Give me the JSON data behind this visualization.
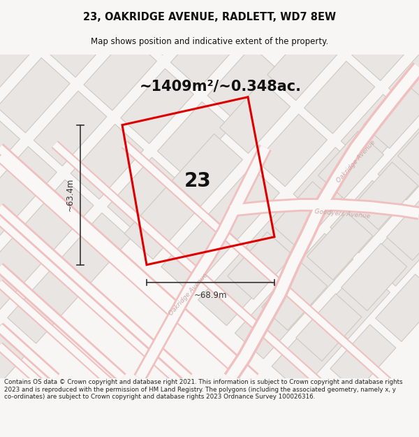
{
  "title_line1": "23, OAKRIDGE AVENUE, RADLETT, WD7 8EW",
  "title_line2": "Map shows position and indicative extent of the property.",
  "area_text": "~1409m²/~0.348ac.",
  "property_number": "23",
  "dim_width": "~68.9m",
  "dim_height": "~63.4m",
  "footer_text": "Contains OS data © Crown copyright and database right 2021. This information is subject to Crown copyright and database rights 2023 and is reproduced with the permission of HM Land Registry. The polygons (including the associated geometry, namely x, y co-ordinates) are subject to Crown copyright and database rights 2023 Ordnance Survey 100026316.",
  "bg_color": "#f7f6f4",
  "map_bg": "#f9f8f6",
  "road_stroke": "#f0c8c8",
  "road_fill": "#f9f8f6",
  "property_color": "#dd0000",
  "dim_color": "#333333",
  "text_color": "#111111",
  "footer_color": "#222222",
  "block_fill": "#e8e5e2",
  "block_edge": "#d8d2cc",
  "street_label_color": "#c8a8a8"
}
